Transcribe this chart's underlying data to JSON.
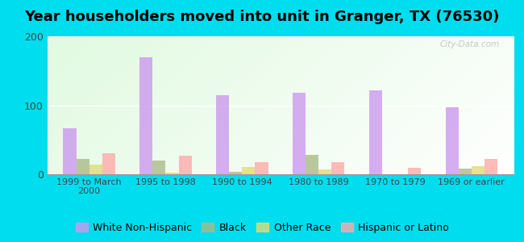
{
  "title": "Year householders moved into unit in Granger, TX (76530)",
  "categories": [
    "1999 to March\n2000",
    "1995 to 1998",
    "1990 to 1994",
    "1980 to 1989",
    "1970 to 1979",
    "1969 or earlier"
  ],
  "series": {
    "White Non-Hispanic": [
      67,
      170,
      115,
      118,
      122,
      97
    ],
    "Black": [
      22,
      20,
      3,
      28,
      0,
      8
    ],
    "Other Race": [
      14,
      2,
      10,
      7,
      0,
      12
    ],
    "Hispanic or Latino": [
      30,
      27,
      18,
      18,
      9,
      22
    ]
  },
  "colors": {
    "White Non-Hispanic": "#cc99ee",
    "Black": "#aabb88",
    "Other Race": "#dddd77",
    "Hispanic or Latino": "#ffaaaa"
  },
  "ylim": [
    0,
    200
  ],
  "yticks": [
    0,
    100,
    200
  ],
  "bar_width": 0.17,
  "outer_background": "#00ddee",
  "title_fontsize": 13,
  "legend_fontsize": 9,
  "watermark": "City-Data.com"
}
